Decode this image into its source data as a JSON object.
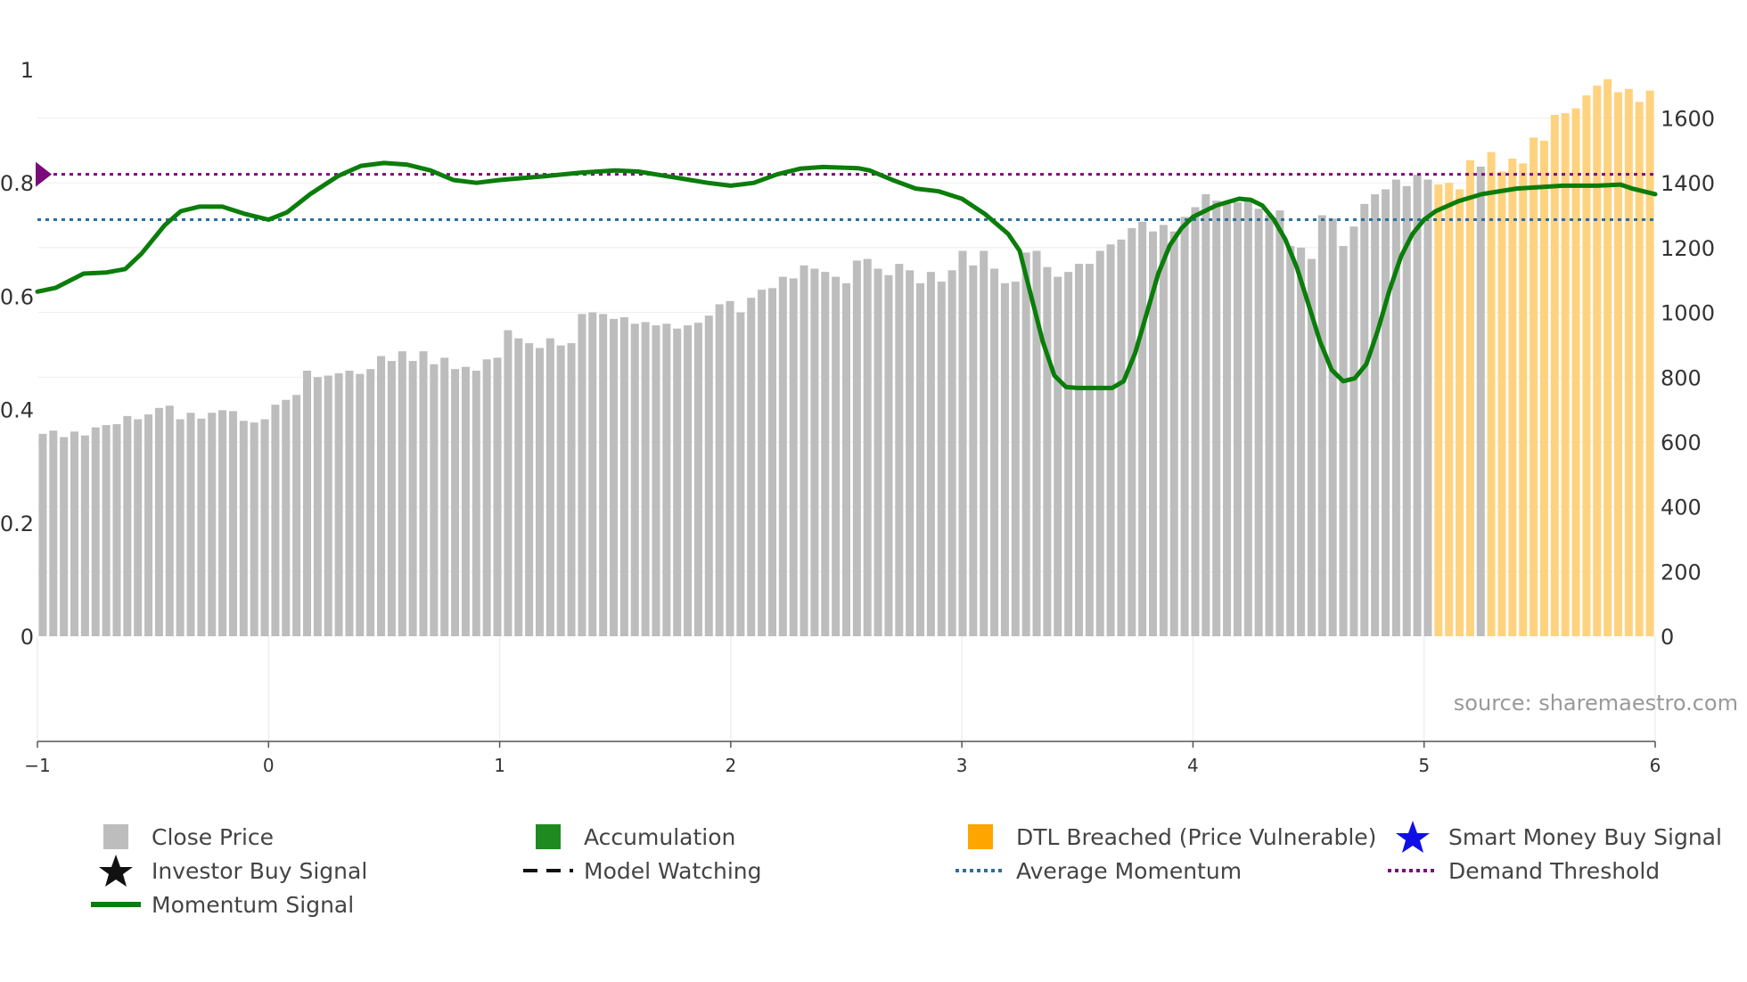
{
  "chart_data": {
    "type": "bar",
    "source_text": "source: sharemaestro.com",
    "colors": {
      "close_price": "#bdbdbd",
      "accumulation": "#1f8a1f",
      "dtl_breached": "#ffa500",
      "momentum": "#0a7d0a",
      "average_momentum": "#2a6f9e",
      "demand_threshold": "#7b0a7b",
      "smart_money": "#1010e6",
      "investor": "#111111"
    },
    "x_axis": {
      "range": [
        -1,
        6
      ],
      "ticks": [
        "−1",
        "0",
        "1",
        "2",
        "3",
        "4",
        "5",
        "6"
      ]
    },
    "left_axis": {
      "range": [
        0,
        1
      ],
      "ticks": [
        "0",
        "0.2",
        "0.4",
        "0.6",
        "0.8",
        "1"
      ]
    },
    "right_axis": {
      "range": [
        0,
        1750
      ],
      "ticks": [
        "0",
        "200",
        "400",
        "600",
        "800",
        "1000",
        "1200",
        "1400",
        "1600"
      ]
    },
    "average_momentum": 0.735,
    "demand_threshold": 0.815,
    "close_prices": [
      625,
      635,
      615,
      632,
      620,
      645,
      652,
      655,
      680,
      670,
      685,
      705,
      712,
      670,
      690,
      672,
      690,
      698,
      695,
      665,
      660,
      670,
      715,
      730,
      745,
      820,
      800,
      805,
      812,
      820,
      810,
      825,
      865,
      850,
      880,
      850,
      880,
      840,
      860,
      825,
      832,
      820,
      855,
      860,
      945,
      920,
      905,
      890,
      920,
      898,
      905,
      995,
      1000,
      995,
      980,
      985,
      965,
      970,
      960,
      965,
      950,
      960,
      968,
      990,
      1025,
      1035,
      1000,
      1045,
      1070,
      1075,
      1110,
      1105,
      1145,
      1135,
      1125,
      1110,
      1090,
      1160,
      1165,
      1135,
      1115,
      1150,
      1130,
      1090,
      1125,
      1095,
      1130,
      1190,
      1145,
      1190,
      1135,
      1090,
      1095,
      1185,
      1190,
      1140,
      1110,
      1125,
      1150,
      1150,
      1190,
      1210,
      1225,
      1260,
      1280,
      1250,
      1270,
      1250,
      1295,
      1325,
      1365,
      1345,
      1335,
      1340,
      1345,
      1320,
      1300,
      1315,
      1205,
      1200,
      1165,
      1300,
      1290,
      1205,
      1265,
      1335,
      1365,
      1380,
      1410,
      1390,
      1425,
      1410,
      1395,
      1400,
      1380,
      1470,
      1450,
      1495,
      1435,
      1475,
      1460,
      1540,
      1530,
      1610,
      1615,
      1630,
      1670,
      1700,
      1720,
      1680,
      1690,
      1650,
      1685
    ],
    "dtl_breached_start_index": 132,
    "accumulation_index": 136,
    "momentum_signal": [
      [
        -1,
        0.608
      ],
      [
        -0.92,
        0.615
      ],
      [
        -0.8,
        0.64
      ],
      [
        -0.7,
        0.642
      ],
      [
        -0.62,
        0.648
      ],
      [
        -0.55,
        0.675
      ],
      [
        -0.45,
        0.725
      ],
      [
        -0.38,
        0.75
      ],
      [
        -0.3,
        0.758
      ],
      [
        -0.2,
        0.758
      ],
      [
        -0.1,
        0.745
      ],
      [
        0,
        0.735
      ],
      [
        0.08,
        0.748
      ],
      [
        0.18,
        0.78
      ],
      [
        0.3,
        0.812
      ],
      [
        0.4,
        0.83
      ],
      [
        0.5,
        0.835
      ],
      [
        0.6,
        0.832
      ],
      [
        0.7,
        0.822
      ],
      [
        0.8,
        0.805
      ],
      [
        0.9,
        0.8
      ],
      [
        1.0,
        0.805
      ],
      [
        1.2,
        0.812
      ],
      [
        1.35,
        0.818
      ],
      [
        1.5,
        0.822
      ],
      [
        1.6,
        0.82
      ],
      [
        1.75,
        0.81
      ],
      [
        1.9,
        0.8
      ],
      [
        2.0,
        0.795
      ],
      [
        2.1,
        0.8
      ],
      [
        2.2,
        0.815
      ],
      [
        2.3,
        0.825
      ],
      [
        2.4,
        0.828
      ],
      [
        2.55,
        0.826
      ],
      [
        2.6,
        0.822
      ],
      [
        2.7,
        0.805
      ],
      [
        2.8,
        0.79
      ],
      [
        2.9,
        0.785
      ],
      [
        3.0,
        0.772
      ],
      [
        3.1,
        0.745
      ],
      [
        3.2,
        0.71
      ],
      [
        3.25,
        0.68
      ],
      [
        3.3,
        0.6
      ],
      [
        3.35,
        0.52
      ],
      [
        3.4,
        0.46
      ],
      [
        3.45,
        0.44
      ],
      [
        3.5,
        0.438
      ],
      [
        3.6,
        0.438
      ],
      [
        3.65,
        0.438
      ],
      [
        3.7,
        0.45
      ],
      [
        3.75,
        0.5
      ],
      [
        3.8,
        0.57
      ],
      [
        3.85,
        0.64
      ],
      [
        3.9,
        0.69
      ],
      [
        3.95,
        0.72
      ],
      [
        4.0,
        0.74
      ],
      [
        4.1,
        0.76
      ],
      [
        4.2,
        0.772
      ],
      [
        4.25,
        0.77
      ],
      [
        4.3,
        0.76
      ],
      [
        4.35,
        0.735
      ],
      [
        4.4,
        0.7
      ],
      [
        4.45,
        0.65
      ],
      [
        4.5,
        0.585
      ],
      [
        4.55,
        0.52
      ],
      [
        4.6,
        0.47
      ],
      [
        4.65,
        0.45
      ],
      [
        4.7,
        0.455
      ],
      [
        4.75,
        0.48
      ],
      [
        4.8,
        0.54
      ],
      [
        4.85,
        0.61
      ],
      [
        4.9,
        0.67
      ],
      [
        4.95,
        0.71
      ],
      [
        5.0,
        0.735
      ],
      [
        5.05,
        0.75
      ],
      [
        5.15,
        0.768
      ],
      [
        5.25,
        0.78
      ],
      [
        5.4,
        0.79
      ],
      [
        5.6,
        0.795
      ],
      [
        5.75,
        0.795
      ],
      [
        5.85,
        0.797
      ],
      [
        5.9,
        0.79
      ],
      [
        6.0,
        0.78
      ]
    ],
    "legend": {
      "close_price": "Close Price",
      "accumulation": "Accumulation",
      "dtl_breached": "DTL Breached (Price Vulnerable)",
      "smart_money": "Smart Money Buy Signal",
      "investor": "Investor Buy Signal",
      "model_watching": "Model Watching",
      "average_momentum": "Average Momentum",
      "demand_threshold": "Demand Threshold",
      "momentum": "Momentum Signal"
    }
  }
}
